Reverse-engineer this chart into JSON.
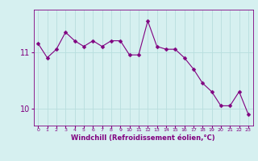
{
  "x": [
    0,
    1,
    2,
    3,
    4,
    5,
    6,
    7,
    8,
    9,
    10,
    11,
    12,
    13,
    14,
    15,
    16,
    17,
    18,
    19,
    20,
    21,
    22,
    23
  ],
  "y": [
    11.15,
    10.9,
    11.05,
    11.35,
    11.2,
    11.1,
    11.2,
    11.1,
    11.2,
    11.2,
    10.95,
    10.95,
    11.55,
    11.1,
    11.05,
    11.05,
    10.9,
    10.7,
    10.45,
    10.3,
    10.05,
    10.05,
    10.3,
    9.9
  ],
  "line_color": "#800080",
  "marker": "D",
  "marker_size": 2.5,
  "bg_color": "#d6f0f0",
  "grid_color": "#b8dede",
  "xlabel": "Windchill (Refroidissement éolien,°C)",
  "xlim": [
    -0.5,
    23.5
  ],
  "ylim": [
    9.7,
    11.75
  ],
  "yticks": [
    10,
    11
  ],
  "xticks": [
    0,
    1,
    2,
    3,
    4,
    5,
    6,
    7,
    8,
    9,
    10,
    11,
    12,
    13,
    14,
    15,
    16,
    17,
    18,
    19,
    20,
    21,
    22,
    23
  ]
}
